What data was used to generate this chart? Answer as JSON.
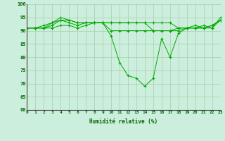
{
  "title": "",
  "xlabel": "Humidité relative (%)",
  "ylabel": "",
  "bg_color": "#cceedd",
  "grid_color": "#aaccaa",
  "line_color": "#00aa00",
  "marker_color": "#00aa00",
  "xlim": [
    0,
    23
  ],
  "ylim": [
    60,
    100
  ],
  "yticks": [
    60,
    65,
    70,
    75,
    80,
    85,
    90,
    95,
    100
  ],
  "xticks": [
    0,
    1,
    2,
    3,
    4,
    5,
    6,
    7,
    8,
    9,
    10,
    11,
    12,
    13,
    14,
    15,
    16,
    17,
    18,
    19,
    20,
    21,
    22,
    23
  ],
  "series": [
    [
      91,
      91,
      91,
      91,
      92,
      92,
      91,
      92,
      93,
      93,
      88,
      78,
      73,
      72,
      69,
      72,
      87,
      80,
      89,
      91,
      91,
      92,
      91,
      95
    ],
    [
      91,
      91,
      91,
      92,
      94,
      93,
      92,
      93,
      93,
      93,
      90,
      90,
      90,
      90,
      90,
      90,
      90,
      90,
      91,
      91,
      91,
      91,
      92,
      94
    ],
    [
      91,
      91,
      91,
      93,
      94,
      94,
      93,
      93,
      93,
      93,
      93,
      93,
      93,
      93,
      93,
      90,
      90,
      90,
      90,
      91,
      91,
      91,
      91,
      94
    ],
    [
      91,
      91,
      92,
      93,
      95,
      94,
      93,
      93,
      93,
      93,
      93,
      93,
      93,
      93,
      93,
      93,
      93,
      93,
      91,
      91,
      92,
      91,
      92,
      94
    ]
  ]
}
